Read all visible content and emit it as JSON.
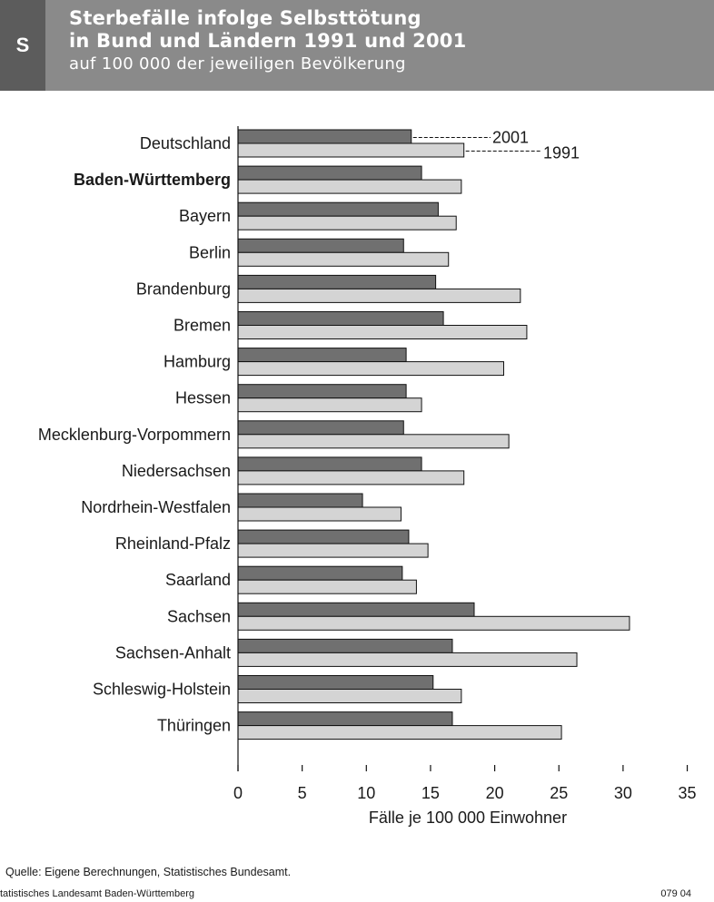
{
  "header": {
    "badge": "S",
    "title_line1": "Sterbefälle infolge Selbsttötung",
    "title_line2": "in Bund und Ländern 1991 und 2001",
    "subtitle": "auf 100 000 der jeweiligen Bevölkerung"
  },
  "colors": {
    "header_bg": "#8a8a8a",
    "badge_bg": "#5c5c5c",
    "bar_2001": "#707070",
    "bar_1991": "#d4d4d4"
  },
  "chart_data": {
    "type": "bar",
    "orientation": "horizontal",
    "categories": [
      "Deutschland",
      "Baden-Württemberg",
      "Bayern",
      "Berlin",
      "Brandenburg",
      "Bremen",
      "Hamburg",
      "Hessen",
      "Mecklenburg-Vorpommern",
      "Niedersachsen",
      "Nordrhein-Westfalen",
      "Rheinland-Pfalz",
      "Saarland",
      "Sachsen",
      "Sachsen-Anhalt",
      "Schleswig-Holstein",
      "Thüringen"
    ],
    "highlighted_category": "Baden-Württemberg",
    "series": [
      {
        "name": "2001",
        "values": [
          13.5,
          14.3,
          15.6,
          12.9,
          15.4,
          16.0,
          13.1,
          13.1,
          12.9,
          14.3,
          9.7,
          13.3,
          12.8,
          18.4,
          16.7,
          15.2,
          16.7
        ]
      },
      {
        "name": "1991",
        "values": [
          17.6,
          17.4,
          17.0,
          16.4,
          22.0,
          22.5,
          20.7,
          14.3,
          21.1,
          17.6,
          12.7,
          14.8,
          13.9,
          30.5,
          26.4,
          17.4,
          25.2
        ]
      }
    ],
    "xlabel": "Fälle je 100 000 Einwohner",
    "xlim": [
      0,
      35
    ],
    "xticks": [
      "0",
      "5",
      "10",
      "15",
      "20",
      "25",
      "30",
      "35"
    ],
    "grid": false,
    "legend": "inline-callout-top-right"
  },
  "source": "Quelle: Eigene Berechnungen, Statistisches Bundesamt.",
  "footer": {
    "left": "tatistisches Landesamt Baden-Württemberg",
    "right": "079 04"
  }
}
